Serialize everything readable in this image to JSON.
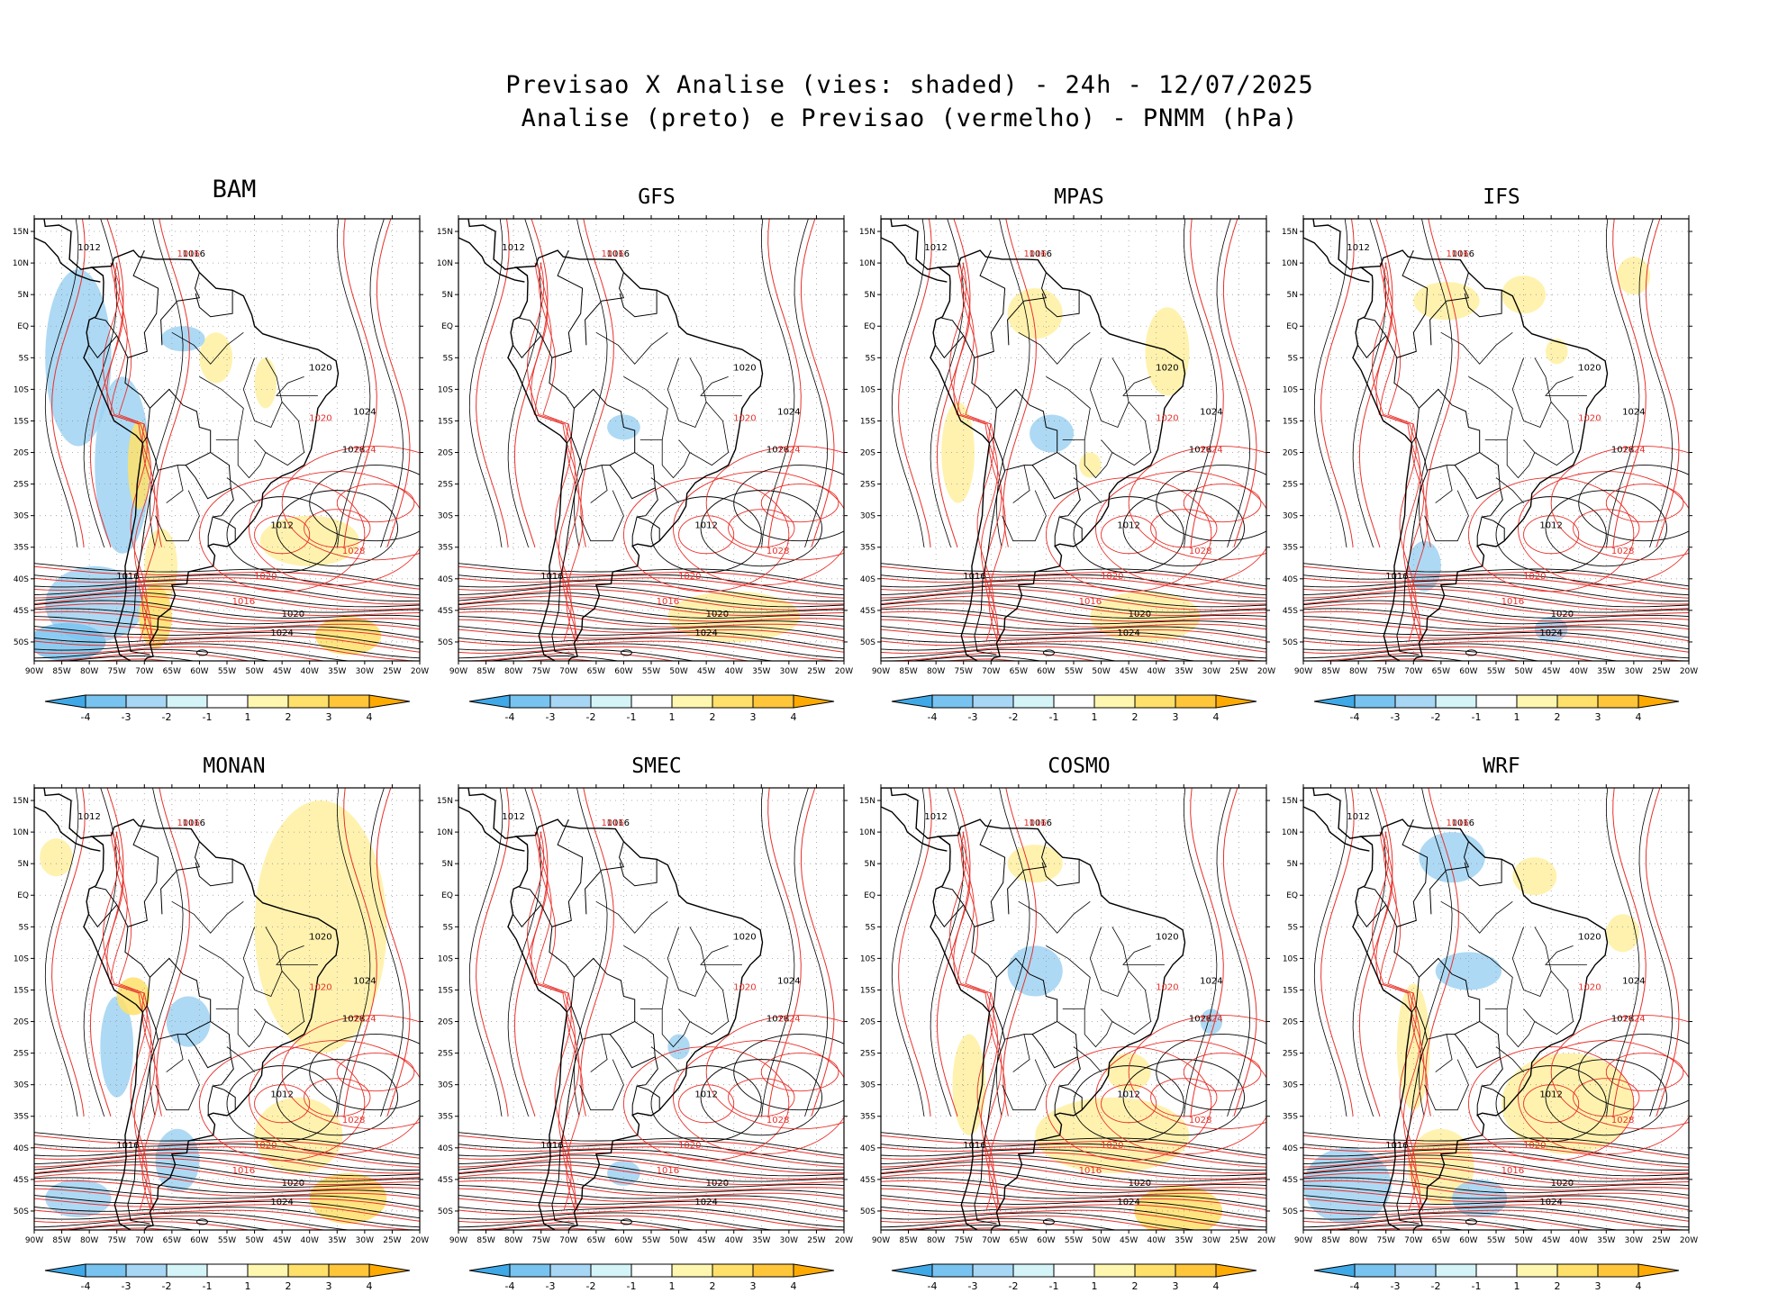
{
  "title": {
    "line1": "Previsao X Analise (vies: shaded) - 24h - 12/07/2025",
    "line2": "Analise (preto) e Previsao (vermelho) - PNMM (hPa)"
  },
  "panels": [
    {
      "name": "BAM"
    },
    {
      "name": "GFS"
    },
    {
      "name": "MPAS"
    },
    {
      "name": "IFS"
    },
    {
      "name": "MONAN"
    },
    {
      "name": "SMEC"
    },
    {
      "name": "COSMO"
    },
    {
      "name": "WRF"
    }
  ],
  "axes": {
    "lat_labels": [
      "15N",
      "10N",
      "5N",
      "EQ",
      "5S",
      "10S",
      "15S",
      "20S",
      "25S",
      "30S",
      "35S",
      "40S",
      "45S",
      "50S"
    ],
    "lon_labels": [
      "90W",
      "85W",
      "80W",
      "75W",
      "70W",
      "65W",
      "60W",
      "55W",
      "50W",
      "45W",
      "40W",
      "35W",
      "30W",
      "25W",
      "20W"
    ]
  },
  "colorbar": {
    "labels": [
      "-4",
      "-3",
      "-2",
      "-1",
      "1",
      "2",
      "3",
      "4"
    ],
    "colors": [
      "#3fa9e8",
      "#78c3f0",
      "#a8d6f5",
      "#d4f4f8",
      "#ffffff",
      "#fff7b0",
      "#ffe06a",
      "#ffc63a",
      "#ffaa00"
    ]
  },
  "contour_labels": {
    "analysis": [
      "1012",
      "1016",
      "1020",
      "1024",
      "1028"
    ],
    "forecast": [
      "1016",
      "1020",
      "1024",
      "1028"
    ]
  },
  "colors": {
    "analysis": "#000000",
    "forecast": "#e8302a",
    "positive_bias": "#ffe06a",
    "negative_bias": "#9fd2f2"
  }
}
